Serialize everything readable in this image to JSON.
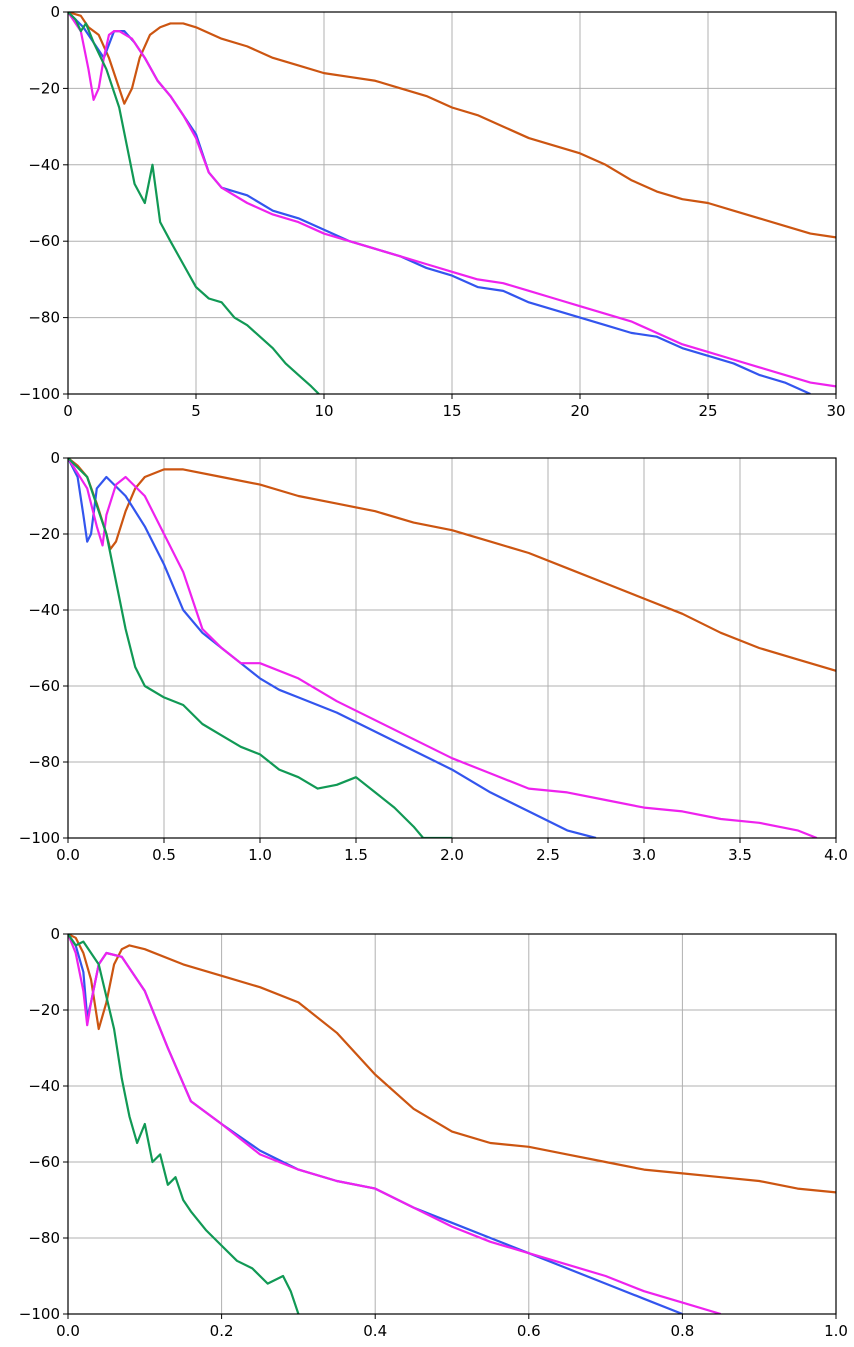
{
  "chart_data": [
    {
      "type": "line",
      "title": "",
      "xlabel": "",
      "ylabel": "",
      "xlim": [
        0,
        30
      ],
      "ylim": [
        -100,
        0
      ],
      "xticks": [
        0,
        5,
        10,
        15,
        20,
        25,
        30
      ],
      "xtick_labels": [
        "0",
        "5",
        "10",
        "15",
        "20",
        "25",
        "30"
      ],
      "yticks": [
        0,
        -20,
        -40,
        -60,
        -80,
        -100
      ],
      "ytick_labels": [
        "0",
        "−20",
        "−40",
        "−60",
        "−80",
        "−100"
      ],
      "grid": true,
      "series": [
        {
          "color": "#cc5511",
          "x": [
            0,
            0.5,
            0.8,
            1.2,
            1.6,
            2.0,
            2.2,
            2.5,
            2.8,
            3.2,
            3.6,
            4.0,
            4.5,
            5.0,
            6.0,
            7.0,
            8.0,
            9.0,
            10.0,
            11.0,
            12.0,
            13.0,
            14.0,
            15.0,
            16.0,
            17.0,
            18.0,
            19.0,
            20.0,
            21.0,
            22.0,
            23.0,
            24.0,
            25.0,
            26.0,
            27.0,
            28.0,
            29.0,
            30.0
          ],
          "y": [
            0,
            -1,
            -4,
            -6,
            -12,
            -20,
            -24,
            -20,
            -12,
            -6,
            -4,
            -3,
            -3,
            -4,
            -7,
            -9,
            -12,
            -14,
            -16,
            -17,
            -18,
            -20,
            -22,
            -25,
            -27,
            -30,
            -33,
            -35,
            -37,
            -40,
            -44,
            -47,
            -49,
            -50,
            -52,
            -54,
            -56,
            -58,
            -59
          ]
        },
        {
          "color": "#3355ee",
          "x": [
            0,
            0.3,
            0.6,
            1.0,
            1.4,
            1.8,
            2.2,
            2.6,
            3.0,
            3.5,
            4.0,
            4.5,
            5.0,
            5.5,
            6.0,
            7.0,
            8.0,
            9.0,
            10.0,
            11.0,
            12.0,
            13.0,
            14.0,
            15.0,
            16.0,
            17.0,
            18.0,
            19.0,
            20.0,
            21.0,
            22.0,
            23.0,
            24.0,
            25.0,
            26.0,
            27.0,
            28.0,
            29.0
          ],
          "y": [
            0,
            -2,
            -4,
            -8,
            -12,
            -5,
            -5,
            -8,
            -12,
            -18,
            -22,
            -27,
            -32,
            -42,
            -46,
            -48,
            -52,
            -54,
            -57,
            -60,
            -62,
            -64,
            -67,
            -69,
            -72,
            -73,
            -76,
            -78,
            -80,
            -82,
            -84,
            -85,
            -88,
            -90,
            -92,
            -95,
            -97,
            -100
          ]
        },
        {
          "color": "#ee22ee",
          "x": [
            0,
            0.5,
            0.8,
            1.0,
            1.2,
            1.4,
            1.6,
            1.8,
            2.0,
            2.5,
            3.0,
            3.5,
            4.0,
            4.5,
            5.0,
            5.5,
            6.0,
            7.0,
            8.0,
            9.0,
            10.0,
            11.0,
            12.0,
            13.0,
            14.0,
            15.0,
            16.0,
            17.0,
            18.0,
            19.0,
            20.0,
            21.0,
            22.0,
            23.0,
            24.0,
            25.0,
            26.0,
            27.0,
            28.0,
            29.0,
            30.0
          ],
          "y": [
            0,
            -5,
            -15,
            -23,
            -20,
            -12,
            -6,
            -5,
            -5,
            -7,
            -12,
            -18,
            -22,
            -27,
            -33,
            -42,
            -46,
            -50,
            -53,
            -55,
            -58,
            -60,
            -62,
            -64,
            -66,
            -68,
            -70,
            -71,
            -73,
            -75,
            -77,
            -79,
            -81,
            -84,
            -87,
            -89,
            -91,
            -93,
            -95,
            -97,
            -98
          ]
        },
        {
          "color": "#119955",
          "x": [
            0,
            0.3,
            0.5,
            0.7,
            1.0,
            1.5,
            2.0,
            2.3,
            2.6,
            3.0,
            3.3,
            3.6,
            4.0,
            4.5,
            5.0,
            5.5,
            6.0,
            6.5,
            7.0,
            7.5,
            8.0,
            8.5,
            9.0,
            9.5,
            9.8
          ],
          "y": [
            0,
            -2,
            -5,
            -3,
            -8,
            -15,
            -25,
            -35,
            -45,
            -50,
            -40,
            -55,
            -60,
            -66,
            -72,
            -75,
            -76,
            -80,
            -82,
            -85,
            -88,
            -92,
            -95,
            -98,
            -100
          ]
        }
      ]
    },
    {
      "type": "line",
      "title": "",
      "xlabel": "",
      "ylabel": "",
      "xlim": [
        0,
        4.0
      ],
      "ylim": [
        -100,
        0
      ],
      "xticks": [
        0,
        0.5,
        1.0,
        1.5,
        2.0,
        2.5,
        3.0,
        3.5,
        4.0
      ],
      "xtick_labels": [
        "0.0",
        "0.5",
        "1.0",
        "1.5",
        "2.0",
        "2.5",
        "3.0",
        "3.5",
        "4.0"
      ],
      "yticks": [
        0,
        -20,
        -40,
        -60,
        -80,
        -100
      ],
      "ytick_labels": [
        "0",
        "−20",
        "−40",
        "−60",
        "−80",
        "−100"
      ],
      "grid": true,
      "series": [
        {
          "color": "#cc5511",
          "x": [
            0,
            0.05,
            0.1,
            0.15,
            0.2,
            0.22,
            0.25,
            0.3,
            0.35,
            0.4,
            0.5,
            0.6,
            0.8,
            1.0,
            1.2,
            1.4,
            1.6,
            1.8,
            2.0,
            2.2,
            2.4,
            2.6,
            2.8,
            3.0,
            3.2,
            3.4,
            3.6,
            3.8,
            4.0
          ],
          "y": [
            0,
            -2,
            -5,
            -12,
            -20,
            -24,
            -22,
            -14,
            -8,
            -5,
            -3,
            -3,
            -5,
            -7,
            -10,
            -12,
            -14,
            -17,
            -19,
            -22,
            -25,
            -29,
            -33,
            -37,
            -41,
            -46,
            -50,
            -53,
            -56
          ]
        },
        {
          "color": "#3355ee",
          "x": [
            0,
            0.05,
            0.08,
            0.1,
            0.12,
            0.15,
            0.2,
            0.3,
            0.4,
            0.5,
            0.6,
            0.7,
            0.8,
            0.9,
            1.0,
            1.1,
            1.2,
            1.4,
            1.6,
            1.8,
            2.0,
            2.2,
            2.4,
            2.6,
            2.75
          ],
          "y": [
            0,
            -5,
            -15,
            -22,
            -20,
            -8,
            -5,
            -10,
            -18,
            -28,
            -40,
            -46,
            -50,
            -54,
            -58,
            -61,
            -63,
            -67,
            -72,
            -77,
            -82,
            -88,
            -93,
            -98,
            -100
          ]
        },
        {
          "color": "#ee22ee",
          "x": [
            0,
            0.1,
            0.15,
            0.18,
            0.2,
            0.25,
            0.3,
            0.4,
            0.5,
            0.6,
            0.7,
            0.8,
            0.9,
            1.0,
            1.2,
            1.4,
            1.6,
            1.8,
            2.0,
            2.2,
            2.4,
            2.6,
            2.8,
            3.0,
            3.2,
            3.4,
            3.6,
            3.8,
            3.9
          ],
          "y": [
            0,
            -8,
            -18,
            -23,
            -15,
            -7,
            -5,
            -10,
            -20,
            -30,
            -45,
            -50,
            -54,
            -54,
            -58,
            -64,
            -69,
            -74,
            -79,
            -83,
            -87,
            -88,
            -90,
            -92,
            -93,
            -95,
            -96,
            -98,
            -100
          ]
        },
        {
          "color": "#119955",
          "x": [
            0,
            0.1,
            0.2,
            0.3,
            0.35,
            0.4,
            0.5,
            0.6,
            0.7,
            0.8,
            0.9,
            1.0,
            1.1,
            1.2,
            1.3,
            1.4,
            1.5,
            1.6,
            1.7,
            1.8,
            1.85,
            2.0
          ],
          "y": [
            0,
            -5,
            -20,
            -45,
            -55,
            -60,
            -63,
            -65,
            -70,
            -73,
            -76,
            -78,
            -82,
            -84,
            -87,
            -86,
            -84,
            -88,
            -92,
            -97,
            -100,
            -100
          ]
        }
      ]
    },
    {
      "type": "line",
      "title": "",
      "xlabel": "",
      "ylabel": "",
      "xlim": [
        0,
        1.0
      ],
      "ylim": [
        -100,
        0
      ],
      "xticks": [
        0,
        0.2,
        0.4,
        0.6,
        0.8,
        1.0
      ],
      "xtick_labels": [
        "0.0",
        "0.2",
        "0.4",
        "0.6",
        "0.8",
        "1.0"
      ],
      "yticks": [
        0,
        -20,
        -40,
        -60,
        -80,
        -100
      ],
      "ytick_labels": [
        "0",
        "−20",
        "−40",
        "−60",
        "−80",
        "−100"
      ],
      "grid": true,
      "series": [
        {
          "color": "#cc5511",
          "x": [
            0,
            0.01,
            0.02,
            0.03,
            0.04,
            0.05,
            0.06,
            0.07,
            0.08,
            0.1,
            0.15,
            0.2,
            0.25,
            0.3,
            0.35,
            0.4,
            0.45,
            0.5,
            0.55,
            0.6,
            0.65,
            0.7,
            0.75,
            0.8,
            0.85,
            0.9,
            0.95,
            1.0
          ],
          "y": [
            0,
            -1,
            -5,
            -12,
            -25,
            -18,
            -8,
            -4,
            -3,
            -4,
            -8,
            -11,
            -14,
            -18,
            -26,
            -37,
            -46,
            -52,
            -55,
            -56,
            -58,
            -60,
            -62,
            -63,
            -64,
            -65,
            -67,
            -68
          ]
        },
        {
          "color": "#3355ee",
          "x": [
            0,
            0.01,
            0.02,
            0.025,
            0.03,
            0.04,
            0.05,
            0.07,
            0.1,
            0.13,
            0.16,
            0.2,
            0.25,
            0.3,
            0.35,
            0.4,
            0.45,
            0.5,
            0.55,
            0.6,
            0.65,
            0.7,
            0.75,
            0.8
          ],
          "y": [
            0,
            -3,
            -10,
            -22,
            -18,
            -8,
            -5,
            -6,
            -15,
            -30,
            -44,
            -50,
            -57,
            -62,
            -65,
            -67,
            -72,
            -76,
            -80,
            -84,
            -88,
            -92,
            -96,
            -100
          ]
        },
        {
          "color": "#ee22ee",
          "x": [
            0,
            0.01,
            0.02,
            0.025,
            0.03,
            0.04,
            0.05,
            0.07,
            0.1,
            0.13,
            0.16,
            0.2,
            0.25,
            0.3,
            0.35,
            0.4,
            0.45,
            0.5,
            0.55,
            0.6,
            0.65,
            0.7,
            0.75,
            0.8,
            0.85
          ],
          "y": [
            0,
            -5,
            -15,
            -24,
            -18,
            -8,
            -5,
            -6,
            -15,
            -30,
            -44,
            -50,
            -58,
            -62,
            -65,
            -67,
            -72,
            -77,
            -81,
            -84,
            -87,
            -90,
            -94,
            -97,
            -100
          ]
        },
        {
          "color": "#119955",
          "x": [
            0,
            0.01,
            0.02,
            0.04,
            0.06,
            0.07,
            0.08,
            0.09,
            0.1,
            0.11,
            0.12,
            0.13,
            0.14,
            0.15,
            0.16,
            0.18,
            0.2,
            0.22,
            0.24,
            0.26,
            0.28,
            0.29,
            0.3
          ],
          "y": [
            0,
            -3,
            -2,
            -8,
            -25,
            -38,
            -48,
            -55,
            -50,
            -60,
            -58,
            -66,
            -64,
            -70,
            -73,
            -78,
            -82,
            -86,
            -88,
            -92,
            -90,
            -94,
            -100
          ]
        }
      ]
    }
  ]
}
